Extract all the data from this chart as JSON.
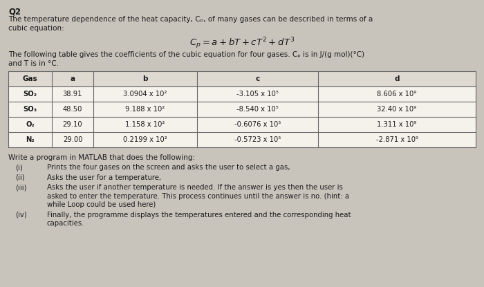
{
  "title": "Q2",
  "intro_line1": "The temperature dependence of the heat capacity, Cₚ, of many gases can be described in terms of a",
  "intro_line2": "cubic equation:",
  "equation": "$C_p = a + bT + cT^2 + dT^3$",
  "table_note_line1": "The following table gives the coefficients of the cubic equation for four gases. Cₚ is in J/(g mol)(°C)",
  "table_note_line2": "and T is in °C.",
  "table_headers": [
    "Gas",
    "a",
    "b",
    "c",
    "d"
  ],
  "table_rows": [
    [
      "SO₂",
      "38.91",
      "3.0904 x 10²",
      "-3.105 x 10⁵",
      "8.606 x 10⁹"
    ],
    [
      "SO₃",
      "48.50",
      "9.188 x 10²",
      "-8.540 x 10⁵",
      "32.40 x 10⁹"
    ],
    [
      "O₂",
      "29.10",
      "1.158 x 10²",
      "-0.6076 x 10⁵",
      "1.311 x 10⁹"
    ],
    [
      "N₂",
      "29.00",
      "0.2199 x 10²",
      "-0.5723 x 10⁵",
      "-2.871 x 10⁹"
    ]
  ],
  "matlab_intro": "Write a program in MATLAB that does the following:",
  "steps": [
    [
      "(i)",
      "Prints the four gases on the screen and asks the user to select a gas,"
    ],
    [
      "(ii)",
      "Asks the user for a temperature,"
    ],
    [
      "(iii)",
      "Asks the user if another temperature is needed. If the answer is yes then the user is\nasked to enter the temperature. This process continues until the answer is no. (hint: a\nwhile Loop could be used here)"
    ],
    [
      "(iv)",
      "Finally, the programme displays the temperatures entered and the corresponding heat\ncapacities."
    ]
  ],
  "bg_color": "#c8c4bc",
  "text_color": "#1a1a1a",
  "table_row_bg": "#f5f2ec",
  "table_header_bg": "#dedad2",
  "table_border": "#666666"
}
